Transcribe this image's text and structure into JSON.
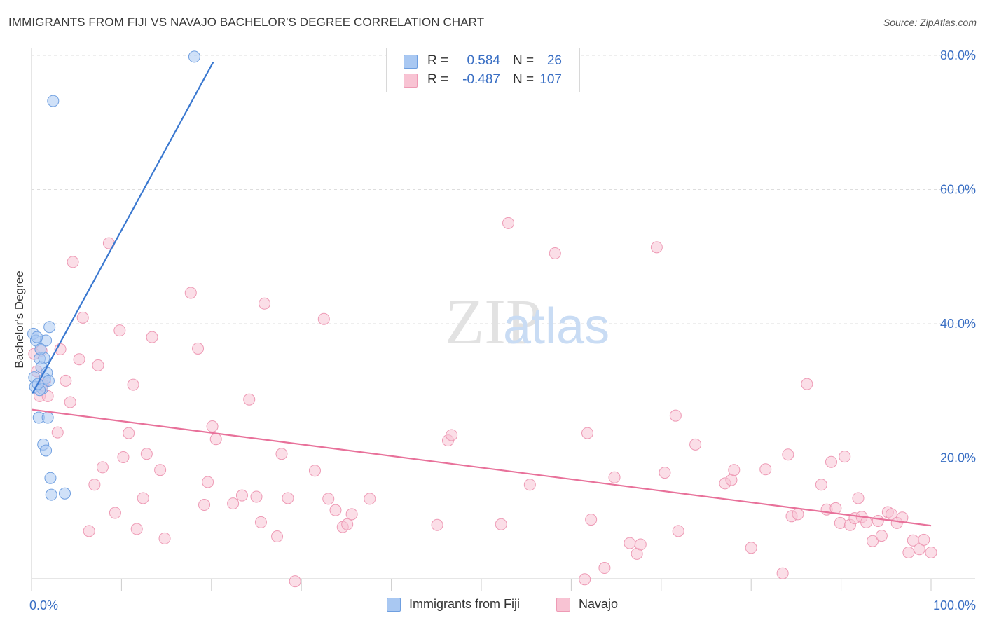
{
  "title": "IMMIGRANTS FROM FIJI VS NAVAJO BACHELOR'S DEGREE CORRELATION CHART",
  "source": "Source: ZipAtlas.com",
  "watermark": {
    "zip": "ZIP",
    "atlas": "atlas"
  },
  "colors": {
    "fiji_fill": "#a9c8f2",
    "fiji_stroke": "#6f9fe0",
    "fiji_line": "#3a78d0",
    "navajo_fill": "#f8c3d3",
    "navajo_stroke": "#ee9ab5",
    "navajo_line": "#e8719a",
    "axis_text": "#3a6fc4",
    "grid": "#dddddd"
  },
  "legend": {
    "rows": [
      {
        "r_label": "R =",
        "r_value": "0.584",
        "n_label": "N =",
        "n_value": "26"
      },
      {
        "r_label": "R =",
        "r_value": "-0.487",
        "n_label": "N =",
        "n_value": "107"
      }
    ]
  },
  "bottom_legend": {
    "fiji": "Immigrants from Fiji",
    "navajo": "Navajo"
  },
  "chart_data": {
    "type": "scatter",
    "title": "IMMIGRANTS FROM FIJI VS NAVAJO BACHELOR'S DEGREE CORRELATION CHART",
    "xlabel": "",
    "ylabel": "Bachelor's Degree",
    "xlim": [
      0,
      100
    ],
    "ylim": [
      0,
      82
    ],
    "x_tick_labels": [
      "0.0%",
      "100.0%"
    ],
    "y_ticks": [
      20,
      40,
      60,
      80
    ],
    "y_tick_labels": [
      "20.0%",
      "40.0%",
      "60.0%",
      "80.0%"
    ],
    "grid": true,
    "legend_position": "top-center",
    "series": [
      {
        "name": "Immigrants from Fiji",
        "r": 0.584,
        "n": 26,
        "trend": {
          "x": [
            0.1,
            20.2
          ],
          "y": [
            29.6,
            79.0
          ]
        },
        "points": [
          [
            18.1,
            79.8
          ],
          [
            2.4,
            73.2
          ],
          [
            0.2,
            38.5
          ],
          [
            0.5,
            37.5
          ],
          [
            1.6,
            37.5
          ],
          [
            2.0,
            39.5
          ],
          [
            0.9,
            34.8
          ],
          [
            1.4,
            34.9
          ],
          [
            1.1,
            33.5
          ],
          [
            1.7,
            32.7
          ],
          [
            0.3,
            32.0
          ],
          [
            1.5,
            31.8
          ],
          [
            0.4,
            30.6
          ],
          [
            1.2,
            30.3
          ],
          [
            0.9,
            30.1
          ],
          [
            0.8,
            26.0
          ],
          [
            1.8,
            26.0
          ],
          [
            1.3,
            22.0
          ],
          [
            1.6,
            21.1
          ],
          [
            2.1,
            17.0
          ],
          [
            2.2,
            14.5
          ],
          [
            3.7,
            14.7
          ],
          [
            0.6,
            38.0
          ],
          [
            1.0,
            36.2
          ],
          [
            0.7,
            31.0
          ],
          [
            1.9,
            31.5
          ]
        ]
      },
      {
        "name": "Navajo",
        "r": -0.487,
        "n": 107,
        "trend": {
          "x": [
            0,
            100
          ],
          "y": [
            27.2,
            9.9
          ]
        },
        "points": [
          [
            0.3,
            35.5
          ],
          [
            0.6,
            32.9
          ],
          [
            0.9,
            29.2
          ],
          [
            1.1,
            36.0
          ],
          [
            1.3,
            30.9
          ],
          [
            1.5,
            31.4
          ],
          [
            1.8,
            29.2
          ],
          [
            2.9,
            23.8
          ],
          [
            3.2,
            36.2
          ],
          [
            3.8,
            31.5
          ],
          [
            4.3,
            28.3
          ],
          [
            4.6,
            49.2
          ],
          [
            5.3,
            34.7
          ],
          [
            5.7,
            40.9
          ],
          [
            6.4,
            9.1
          ],
          [
            7.0,
            16.0
          ],
          [
            7.4,
            33.8
          ],
          [
            7.9,
            18.6
          ],
          [
            8.6,
            52.0
          ],
          [
            9.3,
            11.8
          ],
          [
            9.8,
            39.0
          ],
          [
            10.2,
            20.1
          ],
          [
            10.8,
            23.7
          ],
          [
            11.3,
            30.9
          ],
          [
            11.7,
            9.4
          ],
          [
            12.4,
            14.0
          ],
          [
            12.8,
            20.6
          ],
          [
            13.4,
            38.0
          ],
          [
            14.3,
            18.2
          ],
          [
            14.8,
            8.0
          ],
          [
            17.7,
            44.6
          ],
          [
            18.5,
            36.3
          ],
          [
            19.2,
            13.0
          ],
          [
            19.6,
            16.4
          ],
          [
            20.1,
            24.7
          ],
          [
            20.5,
            22.8
          ],
          [
            22.4,
            13.2
          ],
          [
            23.4,
            14.4
          ],
          [
            24.2,
            28.7
          ],
          [
            25.0,
            14.2
          ],
          [
            25.5,
            10.4
          ],
          [
            25.9,
            43.0
          ],
          [
            27.3,
            8.3
          ],
          [
            27.8,
            20.6
          ],
          [
            28.5,
            14.0
          ],
          [
            29.3,
            1.6
          ],
          [
            31.5,
            18.1
          ],
          [
            32.5,
            40.7
          ],
          [
            33.0,
            13.9
          ],
          [
            33.8,
            12.2
          ],
          [
            34.6,
            9.7
          ],
          [
            35.1,
            10.1
          ],
          [
            35.6,
            11.6
          ],
          [
            37.6,
            13.9
          ],
          [
            45.1,
            10.0
          ],
          [
            46.3,
            22.6
          ],
          [
            46.7,
            23.4
          ],
          [
            52.2,
            10.1
          ],
          [
            53.0,
            55.0
          ],
          [
            55.4,
            16.0
          ],
          [
            58.2,
            50.5
          ],
          [
            61.5,
            1.9
          ],
          [
            61.8,
            23.7
          ],
          [
            62.2,
            10.8
          ],
          [
            63.7,
            3.6
          ],
          [
            64.8,
            17.1
          ],
          [
            66.5,
            7.3
          ],
          [
            67.3,
            5.7
          ],
          [
            67.7,
            7.1
          ],
          [
            69.5,
            51.4
          ],
          [
            70.4,
            17.8
          ],
          [
            71.6,
            26.3
          ],
          [
            71.9,
            9.1
          ],
          [
            73.8,
            22.0
          ],
          [
            77.1,
            16.2
          ],
          [
            77.8,
            16.7
          ],
          [
            78.1,
            18.2
          ],
          [
            80.0,
            6.6
          ],
          [
            81.6,
            18.3
          ],
          [
            83.5,
            2.8
          ],
          [
            84.1,
            20.5
          ],
          [
            84.5,
            11.3
          ],
          [
            85.2,
            11.6
          ],
          [
            86.2,
            31.0
          ],
          [
            87.8,
            16.0
          ],
          [
            88.4,
            12.3
          ],
          [
            88.9,
            19.4
          ],
          [
            89.4,
            12.5
          ],
          [
            89.9,
            10.3
          ],
          [
            90.4,
            20.2
          ],
          [
            91.0,
            10.0
          ],
          [
            91.5,
            11.0
          ],
          [
            91.9,
            14.0
          ],
          [
            92.3,
            11.2
          ],
          [
            92.8,
            10.4
          ],
          [
            93.5,
            7.6
          ],
          [
            94.1,
            10.6
          ],
          [
            94.5,
            8.4
          ],
          [
            95.2,
            11.9
          ],
          [
            95.6,
            11.6
          ],
          [
            96.2,
            10.3
          ],
          [
            96.8,
            11.1
          ],
          [
            97.5,
            5.9
          ],
          [
            98.0,
            7.7
          ],
          [
            98.7,
            6.4
          ],
          [
            99.2,
            7.8
          ],
          [
            100.0,
            5.9
          ]
        ]
      }
    ]
  }
}
